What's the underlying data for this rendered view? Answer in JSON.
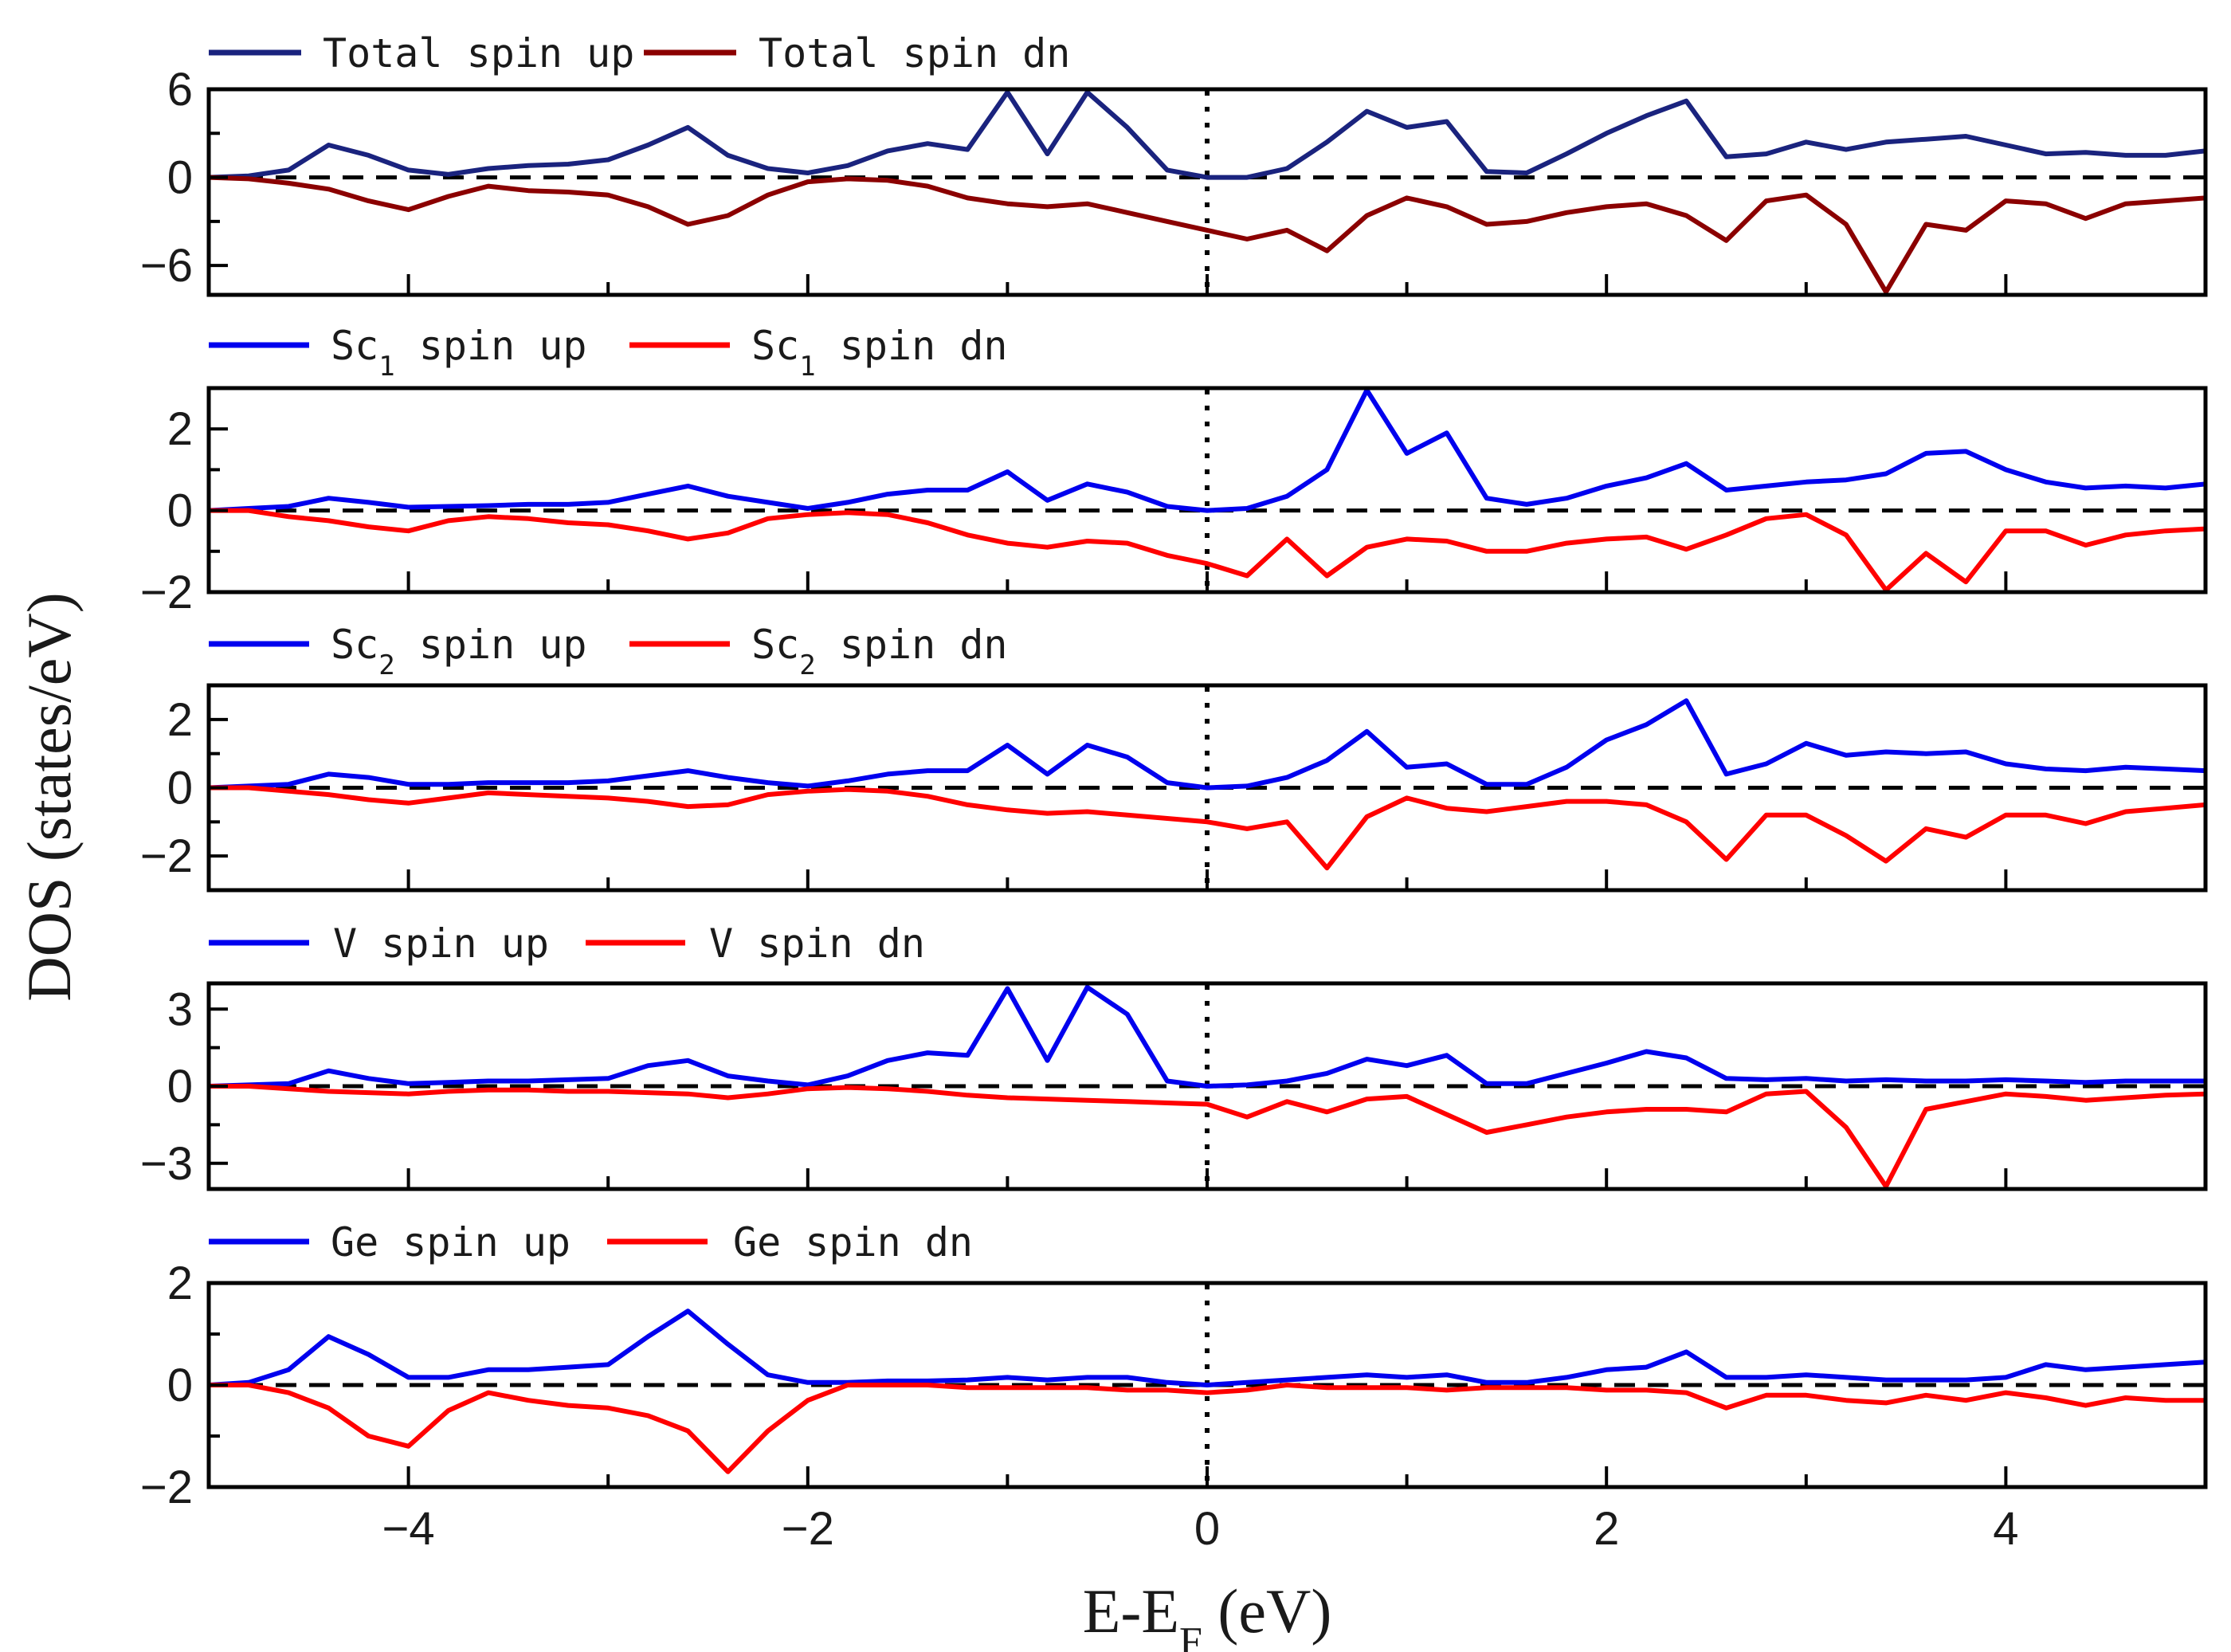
{
  "chart_data": {
    "type": "line",
    "xlabel": {
      "main": "E-E",
      "sub": "F",
      "unit": " (eV)"
    },
    "ylabel": "DOS (states/eV)",
    "xlim": [
      -5,
      5
    ],
    "xticks": [
      -4,
      -2,
      0,
      2,
      4
    ],
    "xtick_labels": [
      "−4",
      "−2",
      "0",
      "2",
      "4"
    ],
    "x": [
      -5.0,
      -4.8,
      -4.6,
      -4.4,
      -4.2,
      -4.0,
      -3.8,
      -3.6,
      -3.4,
      -3.2,
      -3.0,
      -2.8,
      -2.6,
      -2.4,
      -2.2,
      -2.0,
      -1.8,
      -1.6,
      -1.4,
      -1.2,
      -1.0,
      -0.8,
      -0.6,
      -0.4,
      -0.2,
      0.0,
      0.2,
      0.4,
      0.6,
      0.8,
      1.0,
      1.2,
      1.4,
      1.6,
      1.8,
      2.0,
      2.2,
      2.4,
      2.6,
      2.8,
      3.0,
      3.2,
      3.4,
      3.6,
      3.8,
      4.0,
      4.2,
      4.4,
      4.6,
      4.8,
      5.0
    ],
    "panels": [
      {
        "ylim": [
          -8,
          6
        ],
        "yticks": [
          6,
          0,
          -6
        ],
        "ytick_labels": [
          "6",
          "0",
          "−6"
        ],
        "series": [
          {
            "name": "Total spin up",
            "color": "#1a237e",
            "values": [
              0.0,
              0.1,
              0.5,
              2.2,
              1.5,
              0.5,
              0.2,
              0.6,
              0.8,
              0.9,
              1.2,
              2.2,
              3.4,
              1.5,
              0.6,
              0.3,
              0.8,
              1.8,
              2.3,
              1.9,
              5.8,
              1.6,
              5.8,
              3.4,
              0.5,
              0.0,
              0.0,
              0.6,
              2.4,
              4.5,
              3.4,
              3.8,
              0.4,
              0.3,
              1.6,
              3.0,
              4.2,
              5.2,
              1.4,
              1.6,
              2.4,
              1.9,
              2.4,
              2.6,
              2.8,
              2.2,
              1.6,
              1.7,
              1.5,
              1.5,
              1.8
            ]
          },
          {
            "name": "Total spin dn",
            "color": "#8b0000",
            "values": [
              0.0,
              -0.1,
              -0.4,
              -0.8,
              -1.6,
              -2.2,
              -1.3,
              -0.6,
              -0.9,
              -1.0,
              -1.2,
              -2.0,
              -3.2,
              -2.6,
              -1.2,
              -0.3,
              -0.1,
              -0.2,
              -0.6,
              -1.4,
              -1.8,
              -2.0,
              -1.8,
              -2.4,
              -3.0,
              -3.6,
              -4.2,
              -3.6,
              -5.0,
              -2.6,
              -1.4,
              -2.0,
              -3.2,
              -3.0,
              -2.4,
              -2.0,
              -1.8,
              -2.6,
              -4.3,
              -1.6,
              -1.2,
              -3.2,
              -7.8,
              -3.2,
              -3.6,
              -1.6,
              -1.8,
              -2.8,
              -1.8,
              -1.6,
              -1.4
            ]
          }
        ]
      },
      {
        "ylim": [
          -2,
          3
        ],
        "yticks": [
          2,
          0,
          -2
        ],
        "ytick_labels": [
          "2",
          "0",
          "−2"
        ],
        "series": [
          {
            "name": "Sc1 spin up",
            "color": "#0000ee",
            "values": [
              0.0,
              0.05,
              0.1,
              0.3,
              0.2,
              0.08,
              0.1,
              0.12,
              0.15,
              0.15,
              0.2,
              0.4,
              0.6,
              0.35,
              0.2,
              0.05,
              0.2,
              0.4,
              0.5,
              0.5,
              0.95,
              0.25,
              0.65,
              0.45,
              0.1,
              0.0,
              0.05,
              0.35,
              1.0,
              2.95,
              1.4,
              1.9,
              0.3,
              0.15,
              0.3,
              0.6,
              0.8,
              1.15,
              0.5,
              0.6,
              0.7,
              0.75,
              0.9,
              1.4,
              1.45,
              1.0,
              0.7,
              0.55,
              0.6,
              0.55,
              0.65
            ]
          },
          {
            "name": "Sc1 spin dn",
            "color": "#ff0000",
            "values": [
              0.0,
              0.0,
              -0.15,
              -0.25,
              -0.4,
              -0.5,
              -0.25,
              -0.15,
              -0.2,
              -0.3,
              -0.35,
              -0.5,
              -0.7,
              -0.55,
              -0.2,
              -0.1,
              -0.05,
              -0.1,
              -0.3,
              -0.6,
              -0.8,
              -0.9,
              -0.75,
              -0.8,
              -1.1,
              -1.3,
              -1.6,
              -0.7,
              -1.6,
              -0.9,
              -0.7,
              -0.75,
              -1.0,
              -1.0,
              -0.8,
              -0.7,
              -0.65,
              -0.95,
              -0.6,
              -0.2,
              -0.1,
              -0.6,
              -1.95,
              -1.05,
              -1.75,
              -0.5,
              -0.5,
              -0.85,
              -0.6,
              -0.5,
              -0.45
            ]
          }
        ]
      },
      {
        "ylim": [
          -3,
          3
        ],
        "yticks": [
          2,
          0,
          -2
        ],
        "ytick_labels": [
          "2",
          "0",
          "−2"
        ],
        "series": [
          {
            "name": "Sc2 spin up",
            "color": "#0000ee",
            "values": [
              0.0,
              0.05,
              0.1,
              0.4,
              0.3,
              0.1,
              0.1,
              0.15,
              0.15,
              0.15,
              0.2,
              0.35,
              0.5,
              0.3,
              0.15,
              0.05,
              0.2,
              0.4,
              0.5,
              0.5,
              1.25,
              0.4,
              1.25,
              0.9,
              0.15,
              0.0,
              0.05,
              0.3,
              0.8,
              1.65,
              0.6,
              0.7,
              0.1,
              0.1,
              0.6,
              1.4,
              1.85,
              2.55,
              0.4,
              0.7,
              1.3,
              0.95,
              1.05,
              1.0,
              1.05,
              0.7,
              0.55,
              0.5,
              0.6,
              0.55,
              0.5
            ]
          },
          {
            "name": "Sc2 spin dn",
            "color": "#ff0000",
            "values": [
              0.0,
              0.0,
              -0.1,
              -0.2,
              -0.35,
              -0.45,
              -0.3,
              -0.15,
              -0.2,
              -0.25,
              -0.3,
              -0.4,
              -0.55,
              -0.5,
              -0.2,
              -0.1,
              -0.05,
              -0.1,
              -0.25,
              -0.5,
              -0.65,
              -0.75,
              -0.7,
              -0.8,
              -0.9,
              -1.0,
              -1.2,
              -1.0,
              -2.35,
              -0.85,
              -0.3,
              -0.6,
              -0.7,
              -0.55,
              -0.4,
              -0.4,
              -0.5,
              -1.0,
              -2.1,
              -0.8,
              -0.8,
              -1.4,
              -2.15,
              -1.2,
              -1.45,
              -0.8,
              -0.8,
              -1.05,
              -0.7,
              -0.6,
              -0.5
            ]
          }
        ]
      },
      {
        "ylim": [
          -4,
          4
        ],
        "yticks": [
          3,
          0,
          -3
        ],
        "ytick_labels": [
          "3",
          "0",
          "−3"
        ],
        "series": [
          {
            "name": "V spin up",
            "color": "#0000ee",
            "values": [
              0.0,
              0.05,
              0.1,
              0.6,
              0.3,
              0.1,
              0.15,
              0.2,
              0.2,
              0.25,
              0.3,
              0.8,
              1.0,
              0.4,
              0.2,
              0.05,
              0.4,
              1.0,
              1.3,
              1.2,
              3.8,
              1.0,
              3.85,
              2.8,
              0.2,
              0.0,
              0.05,
              0.2,
              0.5,
              1.05,
              0.8,
              1.2,
              0.1,
              0.1,
              0.5,
              0.9,
              1.35,
              1.1,
              0.3,
              0.25,
              0.3,
              0.2,
              0.25,
              0.2,
              0.2,
              0.25,
              0.2,
              0.15,
              0.2,
              0.2,
              0.2
            ]
          },
          {
            "name": "V spin dn",
            "color": "#ff0000",
            "values": [
              0.0,
              0.0,
              -0.1,
              -0.2,
              -0.25,
              -0.3,
              -0.2,
              -0.15,
              -0.15,
              -0.2,
              -0.2,
              -0.25,
              -0.3,
              -0.45,
              -0.3,
              -0.1,
              -0.05,
              -0.1,
              -0.2,
              -0.35,
              -0.45,
              -0.5,
              -0.55,
              -0.6,
              -0.65,
              -0.7,
              -1.2,
              -0.6,
              -1.0,
              -0.5,
              -0.4,
              -1.1,
              -1.8,
              -1.5,
              -1.2,
              -1.0,
              -0.9,
              -0.9,
              -1.0,
              -0.3,
              -0.2,
              -1.6,
              -3.9,
              -0.9,
              -0.6,
              -0.3,
              -0.4,
              -0.55,
              -0.45,
              -0.35,
              -0.3
            ]
          }
        ]
      },
      {
        "ylim": [
          -2,
          2
        ],
        "yticks": [
          2,
          0,
          -2
        ],
        "ytick_labels": [
          "2",
          "0",
          "−2"
        ],
        "series": [
          {
            "name": "Ge spin up",
            "color": "#0000ee",
            "values": [
              0.0,
              0.05,
              0.3,
              0.95,
              0.6,
              0.15,
              0.15,
              0.3,
              0.3,
              0.35,
              0.4,
              0.95,
              1.45,
              0.8,
              0.2,
              0.05,
              0.05,
              0.08,
              0.08,
              0.1,
              0.15,
              0.1,
              0.15,
              0.15,
              0.05,
              0.0,
              0.05,
              0.1,
              0.15,
              0.2,
              0.15,
              0.2,
              0.05,
              0.05,
              0.15,
              0.3,
              0.35,
              0.65,
              0.15,
              0.15,
              0.2,
              0.15,
              0.1,
              0.1,
              0.1,
              0.15,
              0.4,
              0.3,
              0.35,
              0.4,
              0.45
            ]
          },
          {
            "name": "Ge spin dn",
            "color": "#ff0000",
            "values": [
              0.0,
              0.0,
              -0.15,
              -0.45,
              -1.0,
              -1.2,
              -0.5,
              -0.15,
              -0.3,
              -0.4,
              -0.45,
              -0.6,
              -0.9,
              -1.7,
              -0.9,
              -0.3,
              0.0,
              0.0,
              0.0,
              -0.05,
              -0.05,
              -0.05,
              -0.05,
              -0.1,
              -0.1,
              -0.15,
              -0.1,
              0.0,
              -0.05,
              -0.05,
              -0.05,
              -0.1,
              -0.05,
              -0.05,
              -0.05,
              -0.1,
              -0.1,
              -0.15,
              -0.45,
              -0.2,
              -0.2,
              -0.3,
              -0.35,
              -0.2,
              -0.3,
              -0.15,
              -0.25,
              -0.4,
              -0.25,
              -0.3,
              -0.3
            ]
          }
        ]
      }
    ]
  },
  "legends": [
    {
      "up": {
        "text": "Total spin up",
        "sub": ""
      },
      "dn": {
        "text": "Total spin dn",
        "sub": ""
      }
    },
    {
      "up": {
        "text": "Sc",
        "sub": "1",
        "rest": " spin up"
      },
      "dn": {
        "text": "Sc",
        "sub": "1",
        "rest": " spin dn"
      }
    },
    {
      "up": {
        "text": "Sc",
        "sub": "2",
        "rest": " spin up"
      },
      "dn": {
        "text": "Sc",
        "sub": "2",
        "rest": " spin dn"
      }
    },
    {
      "up": {
        "text": "V spin up",
        "sub": ""
      },
      "dn": {
        "text": "V spin dn",
        "sub": ""
      }
    },
    {
      "up": {
        "text": "Ge spin up",
        "sub": ""
      },
      "dn": {
        "text": "Ge spin dn",
        "sub": ""
      }
    }
  ]
}
